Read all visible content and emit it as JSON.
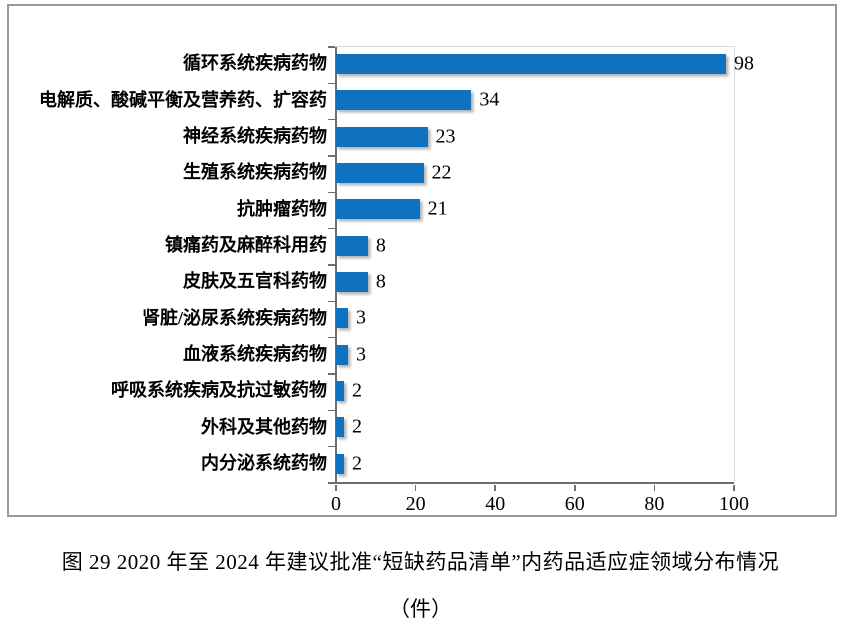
{
  "chart_data": {
    "type": "bar",
    "orientation": "horizontal",
    "figure_label": "图 29",
    "title": "2020 年至 2024 年建议批准“短缺药品清单”内药品适应症领域分布情况",
    "unit": "件",
    "categories": [
      "循环系统疾病药物",
      "电解质、酸碱平衡及营养药、扩容药",
      "神经系统疾病药物",
      "生殖系统疾病药物",
      "抗肿瘤药物",
      "镇痛药及麻醉科用药",
      "皮肤及五官科药物",
      "肾脏/泌尿系统疾病药物",
      "血液系统疾病药物",
      "呼吸系统疾病及抗过敏药物",
      "外科及其他药物",
      "内分泌系统药物"
    ],
    "values": [
      98,
      34,
      23,
      22,
      21,
      8,
      8,
      3,
      3,
      2,
      2,
      2
    ],
    "xlim": [
      0,
      100
    ],
    "x_ticks": [
      0,
      20,
      40,
      60,
      80,
      100
    ],
    "data_labels": true,
    "grid": false,
    "legend": false,
    "bar_color": "#0e72c1",
    "axis_color": "#6e6e6e",
    "plot_border_color": "#d9d9d9",
    "frame_border_color": "#989898"
  },
  "caption": {
    "line1": "图 29  2020 年至 2024 年建议批准“短缺药品清单”内药品适应症领域分布情况",
    "line2": "（件）"
  }
}
